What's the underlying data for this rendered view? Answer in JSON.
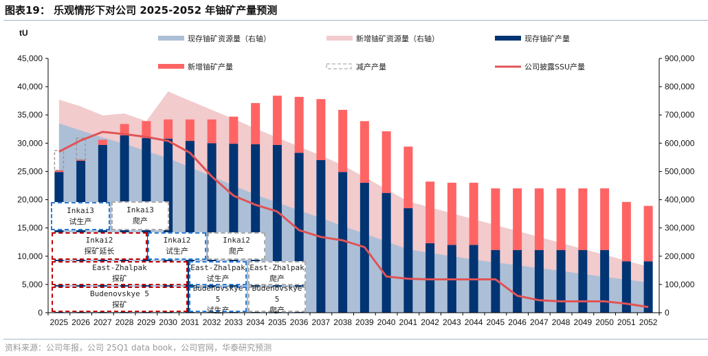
{
  "title": "图表19：  乐观情形下对公司 2025-2052 年铀矿产量预测",
  "source": "资料来源：公司年报，公司 25Q1 data book，公司官网，华泰研究预测",
  "colors": {
    "existing_resource": "#adbfd6",
    "new_resource": "#f2cbcd",
    "existing_production": "#003473",
    "new_production": "#ff6464",
    "reduction": "#999999",
    "ssu_line": "#e05355"
  },
  "chart_data": {
    "type": "bar",
    "ylabel": "tU",
    "ylim": [
      0,
      45000
    ],
    "y2lim": [
      0,
      900000
    ],
    "yticks": [
      "0",
      "5,000",
      "10,000",
      "15,000",
      "20,000",
      "25,000",
      "30,000",
      "35,000",
      "40,000",
      "45,000"
    ],
    "y2ticks": [
      "0",
      "100,000",
      "200,000",
      "300,000",
      "400,000",
      "500,000",
      "600,000",
      "700,000",
      "800,000",
      "900,000"
    ],
    "legend_position": "top",
    "categories": [
      "2025",
      "2026",
      "2027",
      "2028",
      "2029",
      "2030",
      "2031",
      "2032",
      "2033",
      "2034",
      "2035",
      "2036",
      "2037",
      "2038",
      "2039",
      "2040",
      "2041",
      "2042",
      "2043",
      "2044",
      "2045",
      "2046",
      "2047",
      "2048",
      "2049",
      "2050",
      "2051",
      "2052"
    ],
    "series": [
      {
        "name": "现存铀矿资源量（右轴）",
        "type": "area",
        "axis": "right",
        "values": [
          670000,
          645000,
          620000,
          598000,
          572000,
          547000,
          515000,
          483000,
          450000,
          418000,
          390000,
          362000,
          335000,
          307000,
          280000,
          252000,
          224000,
          212000,
          200000,
          188000,
          178000,
          168000,
          158000,
          148000,
          137000,
          127000,
          117000,
          107000
        ]
      },
      {
        "name": "新增铀矿资源量（右轴）",
        "type": "area",
        "axis": "right",
        "stacked_total": [
          754000,
          730000,
          698000,
          705000,
          678000,
          783000,
          750000,
          718000,
          686000,
          652000,
          620000,
          588000,
          556000,
          522000,
          480000,
          437000,
          394000,
          373000,
          352000,
          331000,
          310000,
          289000,
          268000,
          247000,
          226000,
          205000,
          184000,
          163000
        ]
      },
      {
        "name": "现存铀矿产量",
        "type": "bar",
        "axis": "left",
        "values": [
          24900,
          26900,
          29700,
          31400,
          30900,
          30800,
          30400,
          30000,
          29900,
          29800,
          29700,
          28300,
          27000,
          24900,
          23000,
          21200,
          18500,
          12300,
          12000,
          12000,
          11100,
          11100,
          11100,
          11100,
          11100,
          11100,
          9100,
          9100
        ]
      },
      {
        "name": "新增铀矿产量",
        "type": "bar",
        "axis": "left",
        "values": [
          300,
          200,
          900,
          2000,
          3000,
          3400,
          3800,
          4200,
          4800,
          7300,
          8700,
          9900,
          10800,
          11000,
          10900,
          10900,
          10900,
          10900,
          11000,
          11000,
          10900,
          10900,
          10900,
          10900,
          10900,
          10900,
          10500,
          9800
        ]
      },
      {
        "name": "减产产量",
        "type": "bar",
        "axis": "left",
        "values": [
          3500,
          3800,
          0,
          0,
          0,
          0,
          0,
          0,
          0,
          0,
          0,
          0,
          0,
          0,
          0,
          0,
          0,
          0,
          0,
          0,
          0,
          0,
          0,
          0,
          0,
          0,
          0,
          0
        ]
      },
      {
        "name": "公司披露SSU产量",
        "type": "line",
        "axis": "left",
        "values": [
          28500,
          30500,
          32000,
          31600,
          31100,
          30400,
          28300,
          24100,
          20700,
          19100,
          17900,
          14600,
          13400,
          12800,
          11600,
          6400,
          6000,
          5900,
          5900,
          5900,
          5900,
          3000,
          2200,
          2000,
          2000,
          2000,
          1600,
          1000
        ]
      }
    ],
    "annotations": [
      {
        "project": "Inkai3",
        "stage": "试生产",
        "style": "blue"
      },
      {
        "project": "Inkai3",
        "stage": "爬产",
        "style": "gray"
      },
      {
        "project": "Inkai2",
        "stage": "探矿延长",
        "style": "red"
      },
      {
        "project": "Inkai2",
        "stage": "试生产",
        "style": "blue"
      },
      {
        "project": "Inkai2",
        "stage": "爬产",
        "style": "gray"
      },
      {
        "project": "East-Zhalpak",
        "stage": "探矿",
        "style": "red"
      },
      {
        "project": "East-Zhalpak",
        "stage": "试生产",
        "style": "blue"
      },
      {
        "project": "East-Zhalpak",
        "stage": "爬产",
        "style": "gray"
      },
      {
        "project": "Budenovskye 5",
        "stage": "探矿",
        "style": "red"
      },
      {
        "project": "Budenovskye 5",
        "stage": "试生产",
        "style": "blue"
      },
      {
        "project": "Budenovskye 5",
        "stage": "爬产",
        "style": "gray"
      }
    ]
  }
}
